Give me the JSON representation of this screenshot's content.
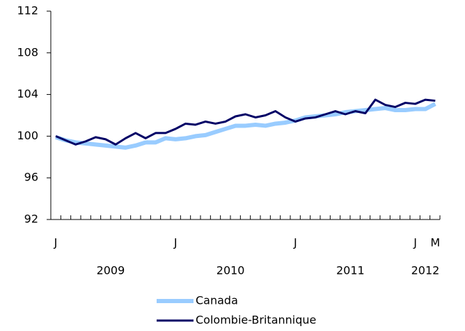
{
  "chart_data": {
    "type": "line",
    "categories": [
      "J",
      null,
      null,
      null,
      null,
      null,
      null,
      null,
      null,
      null,
      null,
      null,
      "J",
      null,
      null,
      null,
      null,
      null,
      null,
      null,
      null,
      null,
      null,
      null,
      "J",
      null,
      null,
      null,
      null,
      null,
      null,
      null,
      null,
      null,
      null,
      null,
      "J",
      null,
      "M"
    ],
    "years": [
      "2009",
      "2010",
      "2011",
      "2012"
    ],
    "series": [
      {
        "name": "Canada",
        "color": "#99ccff",
        "values": [
          99.9,
          99.6,
          99.4,
          99.3,
          99.2,
          99.1,
          99.0,
          98.9,
          99.1,
          99.4,
          99.4,
          99.8,
          99.7,
          99.8,
          100.0,
          100.1,
          100.4,
          100.7,
          101.0,
          101.0,
          101.1,
          101.0,
          101.2,
          101.3,
          101.5,
          101.8,
          101.9,
          102.0,
          102.1,
          102.3,
          102.4,
          102.5,
          102.6,
          102.7,
          102.5,
          102.5,
          102.6,
          102.6,
          103.1
        ]
      },
      {
        "name": "Colombie-Britannique",
        "color": "#000066",
        "values": [
          100.0,
          99.6,
          99.2,
          99.5,
          99.9,
          99.7,
          99.2,
          99.8,
          100.3,
          99.8,
          100.3,
          100.3,
          100.7,
          101.2,
          101.1,
          101.4,
          101.2,
          101.4,
          101.9,
          102.1,
          101.8,
          102.0,
          102.4,
          101.8,
          101.4,
          101.7,
          101.8,
          102.1,
          102.4,
          102.1,
          102.4,
          102.2,
          103.5,
          103.0,
          102.8,
          103.2,
          103.1,
          103.5,
          103.4
        ]
      }
    ],
    "ylim": [
      92,
      112
    ],
    "yticks": [
      92,
      96,
      100,
      104,
      108,
      112
    ],
    "grid": false,
    "legend": "bottom"
  }
}
